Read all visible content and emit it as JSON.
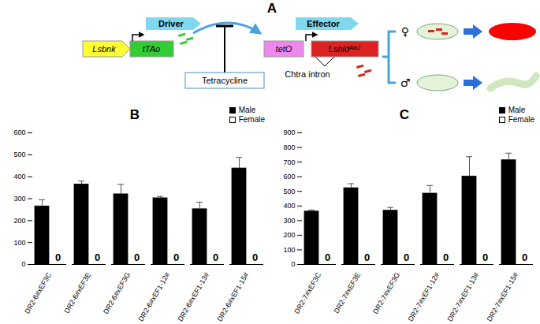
{
  "panel_a": {
    "label": "A",
    "driver": "Driver",
    "effector": "Effector",
    "promoter": "Lsbnk",
    "transactivator": "tTAo",
    "repressor": "Tetracycline",
    "operator": "tetO",
    "effector_gene": {
      "text": "Lshid",
      "sup": "Ala2"
    },
    "intron": "Chtra intron",
    "female": "♀",
    "male": "♂"
  },
  "chart_data": [
    {
      "type": "bar",
      "title": "B",
      "categories": [
        "DR2-6#xEF3C",
        "DR2-6#xEF3E",
        "DR2-6#xEF3G",
        "DR2-6#xEF1-12#",
        "DR2-6#xEF1-13#",
        "DR2-6#xEF1-15#"
      ],
      "series": [
        {
          "name": "Male",
          "color": "#000000",
          "values": [
            265,
            365,
            320,
            302,
            252,
            438
          ],
          "errors": [
            30,
            15,
            45,
            8,
            32,
            50
          ]
        },
        {
          "name": "Female",
          "color": "#ffffff",
          "values": [
            0,
            0,
            0,
            0,
            0,
            0
          ],
          "data_labels": true
        }
      ],
      "ylim": [
        0,
        600
      ],
      "yticks": [
        0,
        100,
        200,
        300,
        400,
        500,
        600
      ],
      "legend": "top-right"
    },
    {
      "type": "bar",
      "title": "C",
      "categories": [
        "DR2-7#xEF3C",
        "DR2-7#xEF3E",
        "DR2-7#xEF3G",
        "DR2-7#xEF1-12#",
        "DR2-7#xEF1-13#",
        "DR2-7#xEF1-15#"
      ],
      "series": [
        {
          "name": "Male",
          "color": "#000000",
          "values": [
            362,
            522,
            368,
            485,
            602,
            713
          ],
          "errors": [
            10,
            30,
            22,
            55,
            135,
            48
          ]
        },
        {
          "name": "Female",
          "color": "#ffffff",
          "values": [
            0,
            0,
            0,
            0,
            0,
            0
          ],
          "data_labels": true
        }
      ],
      "ylim": [
        0,
        900
      ],
      "yticks": [
        0,
        100,
        200,
        300,
        400,
        500,
        600,
        700,
        800,
        900
      ],
      "legend": "top-right"
    }
  ]
}
